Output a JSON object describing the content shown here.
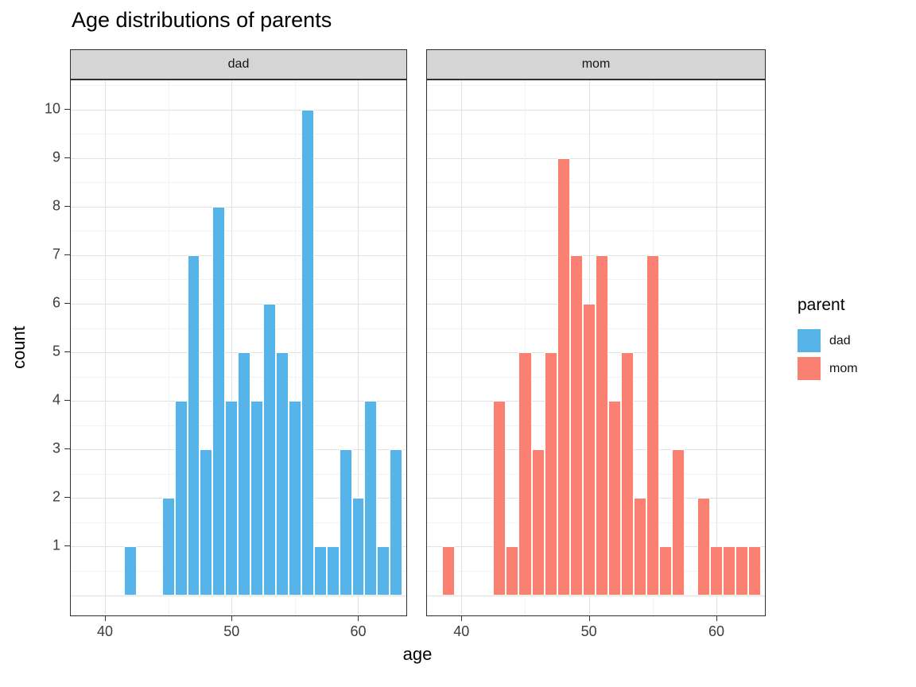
{
  "title": "Age distributions of parents",
  "axes": {
    "x_label": "age",
    "y_label": "count"
  },
  "legend": {
    "title": "parent",
    "items": [
      {
        "label": "dad",
        "color": "#56B4E9"
      },
      {
        "label": "mom",
        "color": "#FA8072"
      }
    ]
  },
  "chart_data": {
    "type": "bar",
    "subtype": "faceted-histogram",
    "title": "Age distributions of parents",
    "xlabel": "age",
    "ylabel": "count",
    "binwidth": 1,
    "xlim": [
      37.3,
      63.8
    ],
    "ylim": [
      -0.45,
      10.6
    ],
    "x_ticks": [
      40,
      50,
      60
    ],
    "y_ticks": [
      1,
      2,
      3,
      4,
      5,
      6,
      7,
      8,
      9,
      10
    ],
    "x_minor_gridlines": [
      45,
      55
    ],
    "grid": "on",
    "legend_position": "right",
    "facets": [
      {
        "name": "dad",
        "color": "#56B4E9",
        "bins": [
          [
            42,
            1
          ],
          [
            45,
            2
          ],
          [
            46,
            4
          ],
          [
            47,
            7
          ],
          [
            48,
            3
          ],
          [
            49,
            8
          ],
          [
            50,
            4
          ],
          [
            51,
            5
          ],
          [
            52,
            4
          ],
          [
            53,
            6
          ],
          [
            54,
            5
          ],
          [
            55,
            4
          ],
          [
            56,
            10
          ],
          [
            57,
            1
          ],
          [
            58,
            1
          ],
          [
            59,
            3
          ],
          [
            60,
            2
          ],
          [
            61,
            4
          ],
          [
            62,
            1
          ],
          [
            63,
            3
          ]
        ]
      },
      {
        "name": "mom",
        "color": "#FA8072",
        "bins": [
          [
            39,
            1
          ],
          [
            43,
            4
          ],
          [
            44,
            1
          ],
          [
            45,
            5
          ],
          [
            46,
            3
          ],
          [
            47,
            5
          ],
          [
            48,
            9
          ],
          [
            49,
            7
          ],
          [
            50,
            6
          ],
          [
            51,
            7
          ],
          [
            52,
            4
          ],
          [
            53,
            5
          ],
          [
            54,
            2
          ],
          [
            55,
            7
          ],
          [
            56,
            1
          ],
          [
            57,
            3
          ],
          [
            59,
            2
          ],
          [
            60,
            1
          ],
          [
            61,
            1
          ],
          [
            62,
            1
          ],
          [
            63,
            1
          ]
        ]
      }
    ]
  }
}
